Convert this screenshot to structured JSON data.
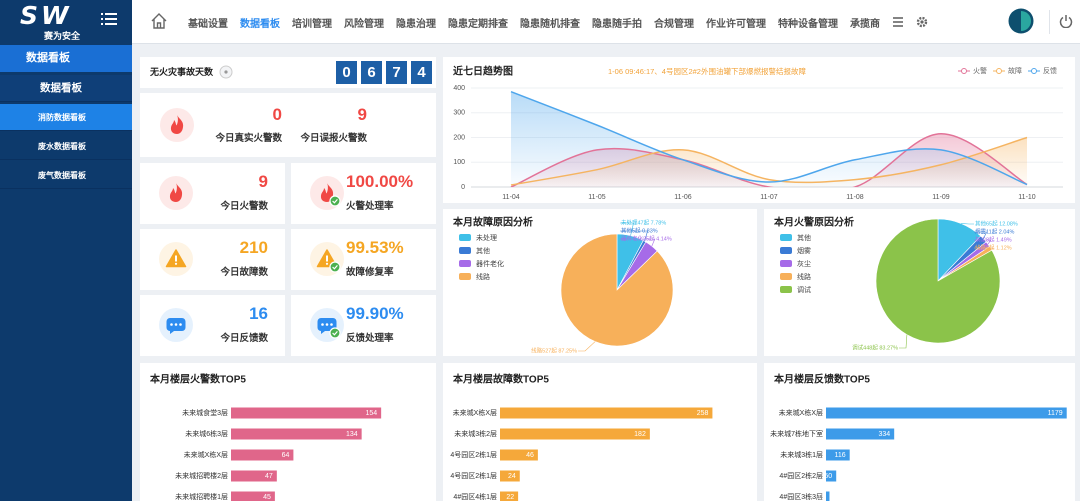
{
  "sidebar": {
    "logo": "SW",
    "brand": "赛为安全",
    "section": "数据看板",
    "items": [
      "数据看板",
      "消防数据看板",
      "废水数据看板",
      "废气数据看板"
    ],
    "active_item": 1
  },
  "nav": {
    "items": [
      "基础设置",
      "数据看板",
      "培训管理",
      "风险管理",
      "隐患治理",
      "隐患定期排查",
      "隐患随机排查",
      "隐患随手拍",
      "合规管理",
      "作业许可管理",
      "特种设备管理",
      "承揽商"
    ],
    "active_item": 1
  },
  "safe_days": {
    "label": "无火灾事故天数",
    "digits": [
      "0",
      "6",
      "7",
      "4"
    ]
  },
  "alarm_summary": {
    "icon": "fire",
    "color": "#f04844",
    "items": [
      {
        "value": "0",
        "label": "今日真实火警数"
      },
      {
        "value": "9",
        "label": "今日误报火警数"
      }
    ]
  },
  "stat_cards": [
    {
      "value": "9",
      "label": "今日火警数",
      "icon": "fire",
      "color": "#f04844"
    },
    {
      "value": "100.00%",
      "label": "火警处理率",
      "icon": "fire",
      "color": "#f04844"
    },
    {
      "value": "210",
      "label": "今日故障数",
      "icon": "warn",
      "color": "#f5a623"
    },
    {
      "value": "99.53%",
      "label": "故障修复率",
      "icon": "warn",
      "color": "#f5a623"
    },
    {
      "value": "16",
      "label": "今日反馈数",
      "icon": "chat",
      "color": "#2d8cf0"
    },
    {
      "value": "99.90%",
      "label": "反馈处理率",
      "icon": "chat",
      "color": "#2d8cf0"
    }
  ],
  "chart_data": [
    {
      "type": "line",
      "title": "近七日趋势图",
      "ticker": "1-06 09:46:17、4号园区2#2外围油罐下部爆燃报警结报故障",
      "categories": [
        "11-04",
        "11-05",
        "11-06",
        "11-07",
        "11-08",
        "11-09",
        "11-10"
      ],
      "series": [
        {
          "name": "火警",
          "color": "#e27398",
          "values": [
            0,
            150,
            110,
            0,
            0,
            215,
            10
          ]
        },
        {
          "name": "故障",
          "color": "#f5b461",
          "values": [
            8,
            70,
            150,
            30,
            30,
            90,
            200
          ]
        },
        {
          "name": "反馈",
          "color": "#4ea6ec",
          "values": [
            385,
            250,
            110,
            20,
            110,
            150,
            10
          ]
        }
      ],
      "ylim": [
        0,
        400
      ],
      "yticks": [
        0,
        100,
        200,
        300,
        400
      ],
      "grid": true,
      "legend": "top-right"
    },
    {
      "type": "pie",
      "title": "本月故障原因分析",
      "categories": [
        "未处理",
        "其他",
        "器件老化",
        "线路"
      ],
      "values": [
        47,
        5,
        25,
        527
      ],
      "value_labels": [
        "未处理47起 7.78%",
        "其他5起 0.83%",
        "器件老化25起 4.14%",
        "线路527起 87.25%"
      ],
      "colors": [
        "#3fc0e8",
        "#3a7bd5",
        "#a66be8",
        "#f7b05a"
      ],
      "legend": "top-left"
    },
    {
      "type": "pie",
      "title": "本月火警原因分析",
      "categories": [
        "其他",
        "烟雾",
        "灰尘",
        "线路",
        "调试"
      ],
      "values": [
        65,
        11,
        8,
        6,
        448
      ],
      "value_labels": [
        "其他65起 12.08%",
        "烟雾11起 2.04%",
        "灰尘8起 1.49%",
        "线路6起 1.12%",
        "调试448起 83.27%"
      ],
      "colors": [
        "#3fc0e8",
        "#3a7bd5",
        "#a66be8",
        "#f7b05a",
        "#8bc34a"
      ],
      "legend": "top-left"
    },
    {
      "type": "bar",
      "orientation": "horizontal",
      "title": "本月楼层火警数TOP5",
      "categories": [
        "未来城食堂3层",
        "未来城6栋3层",
        "未来城X栋X层",
        "未来城招聘楼2层",
        "未来城招聘楼1层"
      ],
      "values": [
        154,
        134,
        64,
        47,
        45
      ],
      "color": "#e0668a",
      "xlim": [
        0,
        200
      ]
    },
    {
      "type": "bar",
      "orientation": "horizontal",
      "title": "本月楼层故障数TOP5",
      "categories": [
        "未来城X栋X层",
        "未来城3栋2层",
        "4号园区2栋1层",
        "4号园区2栋1层",
        "4#园区4栋1层"
      ],
      "values": [
        258,
        182,
        46,
        24,
        22
      ],
      "color": "#f5a83a",
      "xlim": [
        0,
        300
      ]
    },
    {
      "type": "bar",
      "orientation": "horizontal",
      "title": "本月楼层反馈数TOP5",
      "categories": [
        "未来城X栋X层",
        "未来城7栋地下室",
        "未来城3栋1层",
        "4#园区2栋2层",
        "4#园区3栋3层"
      ],
      "values": [
        1179,
        334,
        116,
        50,
        17
      ],
      "color": "#3d9be9",
      "xlim": [
        0,
        1200
      ]
    }
  ]
}
